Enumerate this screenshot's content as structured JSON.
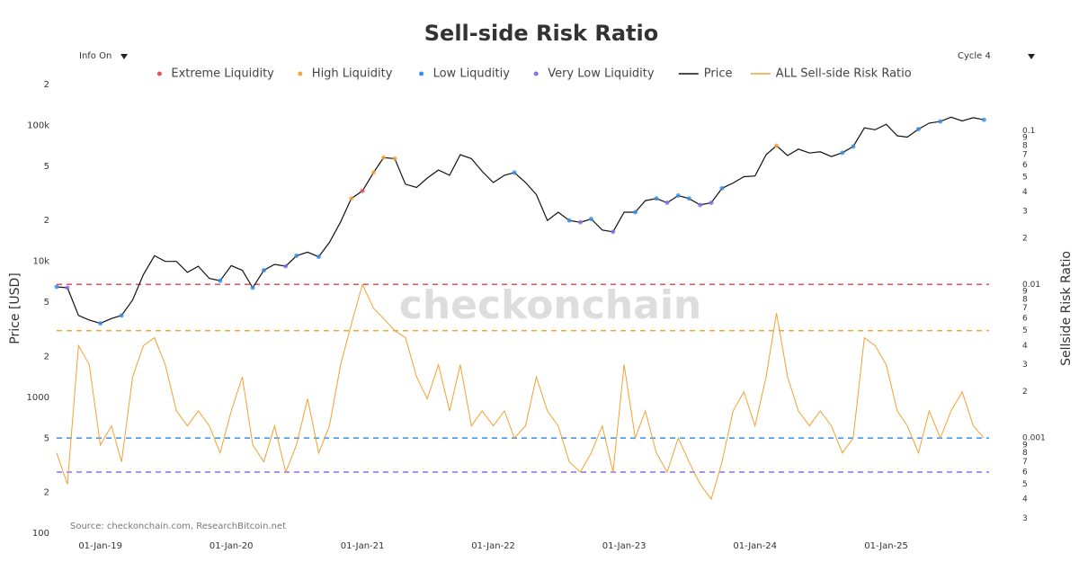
{
  "chart_data": {
    "type": "line",
    "title": "Sell-side Risk Ratio",
    "watermark": "checkonchain",
    "source": "Source: checkonchain.com, ResearchBitcoin.net",
    "ylabel": "Price [USD]",
    "y2label": "Sellside Risk Ratio",
    "info_dropdown": "Info On",
    "cycle_dropdown": "Cycle 4",
    "log_scale": true,
    "grid": false,
    "x": [
      "2018-09-01",
      "2018-10-01",
      "2018-11-01",
      "2018-12-01",
      "2019-01-01",
      "2019-02-01",
      "2019-03-01",
      "2019-04-01",
      "2019-05-01",
      "2019-06-01",
      "2019-07-01",
      "2019-08-01",
      "2019-09-01",
      "2019-10-01",
      "2019-11-01",
      "2019-12-01",
      "2020-01-01",
      "2020-02-01",
      "2020-03-01",
      "2020-04-01",
      "2020-05-01",
      "2020-06-01",
      "2020-07-01",
      "2020-08-01",
      "2020-09-01",
      "2020-10-01",
      "2020-11-01",
      "2020-12-01",
      "2021-01-01",
      "2021-02-01",
      "2021-03-01",
      "2021-04-01",
      "2021-05-01",
      "2021-06-01",
      "2021-07-01",
      "2021-08-01",
      "2021-09-01",
      "2021-10-01",
      "2021-11-01",
      "2021-12-01",
      "2022-01-01",
      "2022-02-01",
      "2022-03-01",
      "2022-04-01",
      "2022-05-01",
      "2022-06-01",
      "2022-07-01",
      "2022-08-01",
      "2022-09-01",
      "2022-10-01",
      "2022-11-01",
      "2022-12-01",
      "2023-01-01",
      "2023-02-01",
      "2023-03-01",
      "2023-04-01",
      "2023-05-01",
      "2023-06-01",
      "2023-07-01",
      "2023-08-01",
      "2023-09-01",
      "2023-10-01",
      "2023-11-01",
      "2023-12-01",
      "2024-01-01",
      "2024-02-01",
      "2024-03-01",
      "2024-04-01",
      "2024-05-01",
      "2024-06-01",
      "2024-07-01",
      "2024-08-01",
      "2024-09-01",
      "2024-10-01",
      "2024-11-01",
      "2024-12-01",
      "2025-01-01",
      "2025-02-01",
      "2025-03-01",
      "2025-04-01",
      "2025-05-01",
      "2025-06-01",
      "2025-07-01",
      "2025-08-01",
      "2025-09-01",
      "2025-10-01"
    ],
    "xlim": [
      "2018-09-01",
      "2025-10-15"
    ],
    "xticks": [
      {
        "value": "2019-01-01",
        "label": "01-Jan-19"
      },
      {
        "value": "2020-01-01",
        "label": "01-Jan-20"
      },
      {
        "value": "2021-01-01",
        "label": "01-Jan-21"
      },
      {
        "value": "2022-01-01",
        "label": "01-Jan-22"
      },
      {
        "value": "2023-01-01",
        "label": "01-Jan-23"
      },
      {
        "value": "2024-01-01",
        "label": "01-Jan-24"
      },
      {
        "value": "2025-01-01",
        "label": "01-Jan-25"
      }
    ],
    "ylim": [
      100,
      200000
    ],
    "yticks": [
      100,
      {
        "value": 200,
        "label": "2"
      },
      {
        "value": 500,
        "label": "5"
      },
      1000,
      {
        "value": 2000,
        "label": "2"
      },
      {
        "value": 5000,
        "label": "5"
      },
      {
        "value": 10000,
        "label": "10k"
      },
      {
        "value": 20000,
        "label": "2"
      },
      {
        "value": 50000,
        "label": "5"
      },
      {
        "value": 100000,
        "label": "100k"
      },
      {
        "value": 200000,
        "label": "2"
      }
    ],
    "y2lim": [
      0.00024,
      0.2
    ],
    "y2ticks": [
      {
        "value": 0.0003,
        "label": "3"
      },
      {
        "value": 0.0004,
        "label": "4"
      },
      {
        "value": 0.0005,
        "label": "5"
      },
      {
        "value": 0.0006,
        "label": "6"
      },
      {
        "value": 0.0007,
        "label": "7"
      },
      {
        "value": 0.0008,
        "label": "8"
      },
      {
        "value": 0.0009,
        "label": "9"
      },
      0.001,
      {
        "value": 0.002,
        "label": "2"
      },
      {
        "value": 0.003,
        "label": "3"
      },
      {
        "value": 0.004,
        "label": "4"
      },
      {
        "value": 0.005,
        "label": "5"
      },
      {
        "value": 0.006,
        "label": "6"
      },
      {
        "value": 0.007,
        "label": "7"
      },
      {
        "value": 0.008,
        "label": "8"
      },
      {
        "value": 0.009,
        "label": "9"
      },
      0.01,
      {
        "value": 0.02,
        "label": "2"
      },
      {
        "value": 0.03,
        "label": "3"
      },
      {
        "value": 0.04,
        "label": "4"
      },
      {
        "value": 0.05,
        "label": "5"
      },
      {
        "value": 0.06,
        "label": "6"
      },
      {
        "value": 0.07,
        "label": "7"
      },
      {
        "value": 0.08,
        "label": "8"
      },
      {
        "value": 0.09,
        "label": "9"
      },
      0.1
    ],
    "levels": [
      {
        "name": "Extreme Liquidity",
        "color": "#e8505b",
        "value": 0.01
      },
      {
        "name": "High Liquidity",
        "color": "#f7a43a",
        "value": 0.005
      },
      {
        "name": "Low Liquditiy",
        "color": "#3a8ee6",
        "value": 0.001
      },
      {
        "name": "Very Low Liquidity",
        "color": "#8a6ee8",
        "value": 0.0006
      }
    ],
    "series": [
      {
        "name": "Price",
        "color": "#111111",
        "axis": "y",
        "values": [
          6500,
          6400,
          4000,
          3700,
          3500,
          3800,
          4000,
          5200,
          8000,
          11000,
          10000,
          10000,
          8300,
          9200,
          7500,
          7200,
          9300,
          8600,
          6400,
          8600,
          9500,
          9200,
          11000,
          11700,
          10800,
          13800,
          19500,
          29000,
          33000,
          45000,
          58000,
          57000,
          37000,
          35000,
          41000,
          47000,
          43000,
          61000,
          57000,
          46000,
          38000,
          43000,
          45000,
          38000,
          31000,
          20000,
          23000,
          20000,
          19400,
          20500,
          17000,
          16500,
          23000,
          23000,
          28000,
          29000,
          27000,
          30500,
          29000,
          26000,
          27000,
          34500,
          37700,
          42000,
          42500,
          61000,
          71000,
          60000,
          67000,
          62700,
          64000,
          59000,
          63000,
          70000,
          96000,
          93000,
          102000,
          84000,
          82000,
          94000,
          104000,
          107000,
          115000,
          108000,
          114000,
          110000
        ]
      },
      {
        "name": "ALL Sell-side Risk Ratio",
        "color": "#f5a030",
        "axis": "y2",
        "values": [
          0.0008,
          0.0005,
          0.004,
          0.003,
          0.0009,
          0.0012,
          0.0007,
          0.0025,
          0.004,
          0.0045,
          0.003,
          0.0015,
          0.0012,
          0.0015,
          0.0012,
          0.0008,
          0.0015,
          0.0025,
          0.0009,
          0.0007,
          0.0012,
          0.0006,
          0.0009,
          0.0018,
          0.0008,
          0.0012,
          0.003,
          0.0055,
          0.01,
          0.007,
          0.006,
          0.005,
          0.0045,
          0.0025,
          0.0018,
          0.003,
          0.0015,
          0.003,
          0.0012,
          0.0015,
          0.0012,
          0.0015,
          0.001,
          0.0012,
          0.0025,
          0.0015,
          0.0012,
          0.0007,
          0.0006,
          0.0008,
          0.0012,
          0.0006,
          0.003,
          0.001,
          0.0015,
          0.0008,
          0.0006,
          0.001,
          0.0007,
          0.0005,
          0.0004,
          0.0007,
          0.0015,
          0.002,
          0.0012,
          0.0025,
          0.0065,
          0.0025,
          0.0015,
          0.0012,
          0.0015,
          0.0012,
          0.0008,
          0.001,
          0.0045,
          0.004,
          0.003,
          0.0015,
          0.0012,
          0.0008,
          0.0015,
          0.001,
          0.0015,
          0.002,
          0.0012,
          0.001
        ]
      }
    ]
  }
}
